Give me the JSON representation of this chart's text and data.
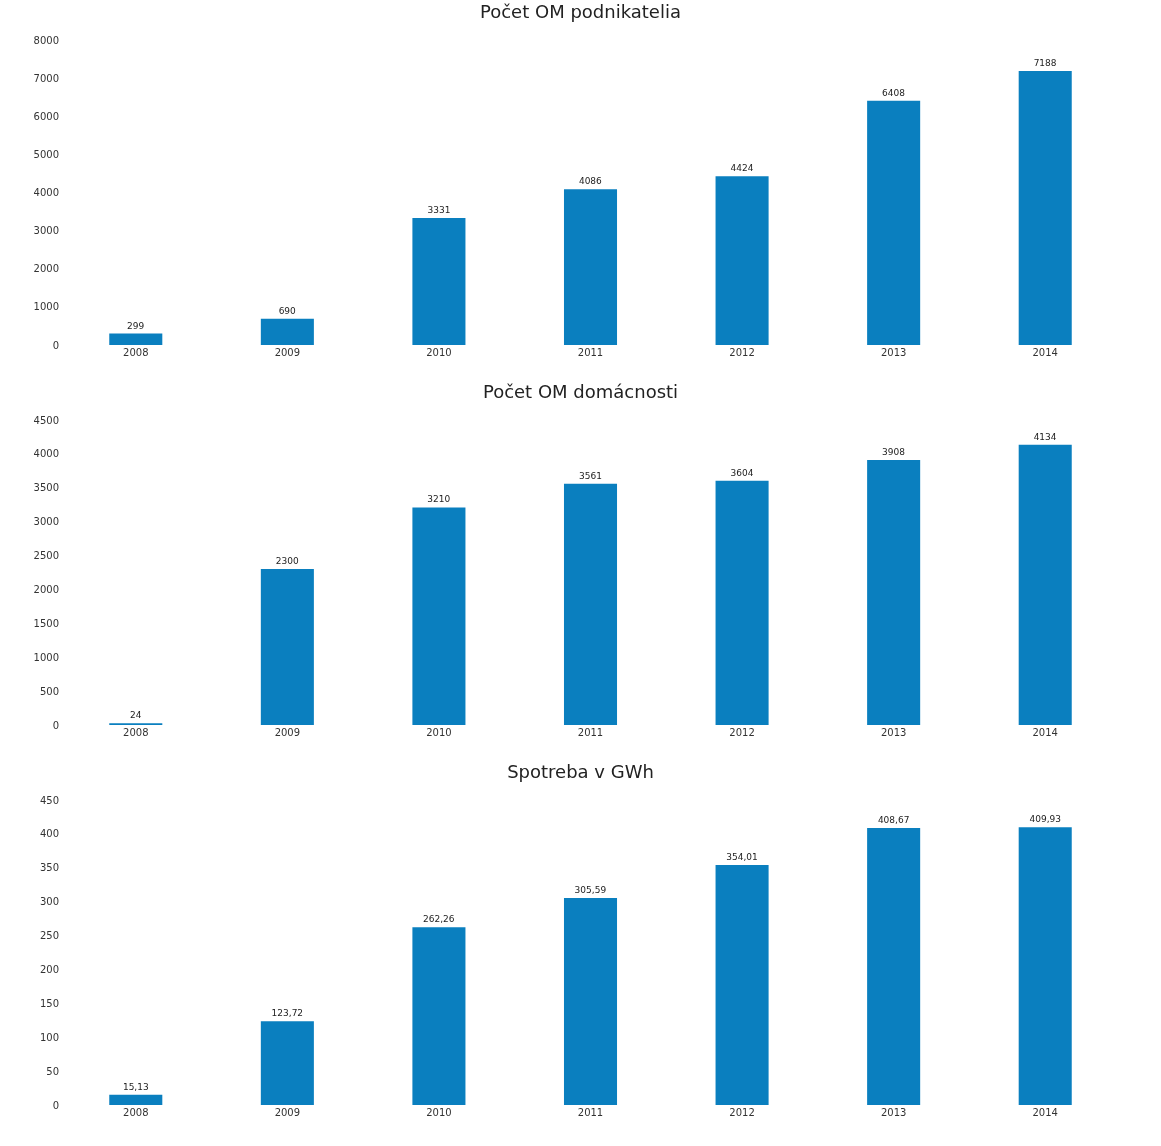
{
  "chart_data": [
    {
      "type": "bar",
      "title": "Počet OM podnikatelia",
      "categories": [
        "2008",
        "2009",
        "2010",
        "2011",
        "2012",
        "2013",
        "2014"
      ],
      "values": [
        299,
        690,
        3331,
        4086,
        4424,
        6408,
        7188
      ],
      "value_labels": [
        "299",
        "690",
        "3331",
        "4086",
        "4424",
        "6408",
        "7188"
      ],
      "color": "#0a7fbf",
      "ylim": [
        0,
        8000
      ],
      "yticks": [
        0,
        1000,
        2000,
        3000,
        4000,
        5000,
        6000,
        7000,
        8000
      ],
      "grid": false,
      "legend": false
    },
    {
      "type": "bar",
      "title": "Počet OM domácnosti",
      "categories": [
        "2008",
        "2009",
        "2010",
        "2011",
        "2012",
        "2013",
        "2014"
      ],
      "values": [
        24,
        2300,
        3210,
        3561,
        3604,
        3908,
        4134
      ],
      "value_labels": [
        "24",
        "2300",
        "3210",
        "3561",
        "3604",
        "3908",
        "4134"
      ],
      "color": "#0a7fbf",
      "ylim": [
        0,
        4500
      ],
      "yticks": [
        0,
        500,
        1000,
        1500,
        2000,
        2500,
        3000,
        3500,
        4000,
        4500
      ],
      "grid": false,
      "legend": false
    },
    {
      "type": "bar",
      "title": "Spotreba v GWh",
      "categories": [
        "2008",
        "2009",
        "2010",
        "2011",
        "2012",
        "2013",
        "2014"
      ],
      "values": [
        15.13,
        123.72,
        262.26,
        305.59,
        354.01,
        408.67,
        409.93
      ],
      "value_labels": [
        "15,13",
        "123,72",
        "262,26",
        "305,59",
        "354,01",
        "408,67",
        "409,93"
      ],
      "color": "#0a7fbf",
      "ylim": [
        0,
        450
      ],
      "yticks": [
        0,
        50,
        100,
        150,
        200,
        250,
        300,
        350,
        400,
        450
      ],
      "grid": false,
      "legend": false
    }
  ]
}
